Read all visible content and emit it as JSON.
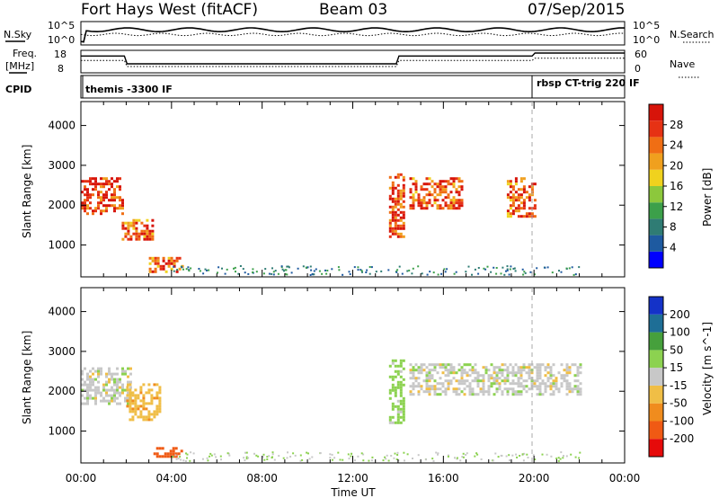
{
  "header": {
    "station": "Fort Hays West (fitACF)",
    "beam": "Beam 03",
    "date": "07/Sep/2015"
  },
  "top_panels": {
    "nsky_label": "N.Sky",
    "nsky_ticks": [
      "10^5",
      "10^0"
    ],
    "nsearch_label": "N.Search",
    "nsearch_ticks": [
      "10^5",
      "10^0"
    ],
    "freq_label_1": "Freq.",
    "freq_label_2": "[MHz]",
    "freq_ticks": [
      "18",
      "8"
    ],
    "nave_label": "Nave",
    "nave_ticks": [
      "60",
      "0"
    ],
    "cpid_label": "CPID",
    "cpid_left": "themis -3300 IF",
    "cpid_right": "rbsp CT-trig 220 IF"
  },
  "chart_data": [
    {
      "type": "heatmap",
      "panel": "power",
      "ylabel": "Slant Range [km]",
      "yticks": [
        "4000",
        "3000",
        "2000",
        "1000"
      ],
      "ylim": [
        200,
        4600
      ],
      "xlim_hours": [
        0,
        24
      ],
      "colorbar_label": "Power [dB]",
      "colorbar_ticks": [
        "28",
        "24",
        "20",
        "16",
        "12",
        "8",
        "4"
      ],
      "colors": [
        "#0000ff",
        "#1e5aa0",
        "#2f7c74",
        "#3ca04a",
        "#8cc83c",
        "#f0d21e",
        "#f0a01e",
        "#f06e14",
        "#e63214",
        "#d7140a"
      ],
      "echo_regions": [
        {
          "t": [
            0.0,
            1.8
          ],
          "r": [
            1800,
            2700
          ],
          "power": 26
        },
        {
          "t": [
            1.8,
            3.2
          ],
          "r": [
            1150,
            1650
          ],
          "power": 24
        },
        {
          "t": [
            3.0,
            4.5
          ],
          "r": [
            350,
            700
          ],
          "power": 22
        },
        {
          "t": [
            13.6,
            14.3
          ],
          "r": [
            1200,
            2800
          ],
          "power": 25
        },
        {
          "t": [
            14.5,
            16.8
          ],
          "r": [
            1900,
            2700
          ],
          "power": 24
        },
        {
          "t": [
            18.8,
            20.0
          ],
          "r": [
            1700,
            2700
          ],
          "power": 24
        }
      ]
    },
    {
      "type": "heatmap",
      "panel": "velocity",
      "ylabel": "Slant Range [km]",
      "yticks": [
        "4000",
        "3000",
        "2000",
        "1000"
      ],
      "ylim": [
        200,
        4600
      ],
      "xlim_hours": [
        0,
        24
      ],
      "xticks": [
        "00:00",
        "04:00",
        "08:00",
        "12:00",
        "16:00",
        "20:00",
        "00:00"
      ],
      "xlabel": "Time UT",
      "colorbar_label": "Velocity [m s^-1]",
      "colorbar_ticks": [
        "200",
        "100",
        "50",
        "15",
        "-15",
        "-50",
        "-100",
        "-200"
      ],
      "colors": [
        "#e60a0a",
        "#f05a14",
        "#f08c1e",
        "#f0be46",
        "#c8c8c8",
        "#8cd250",
        "#46a03c",
        "#1e6e96",
        "#1432c8"
      ],
      "echo_regions": [
        {
          "t": [
            0.0,
            2.2
          ],
          "r": [
            1700,
            2600
          ],
          "velocity": 0
        },
        {
          "t": [
            2.0,
            3.5
          ],
          "r": [
            1300,
            2200
          ],
          "velocity": -40
        },
        {
          "t": [
            3.2,
            4.5
          ],
          "r": [
            350,
            600
          ],
          "velocity": -150
        },
        {
          "t": [
            13.6,
            14.3
          ],
          "r": [
            1200,
            2800
          ],
          "velocity": 30
        },
        {
          "t": [
            14.5,
            22.0
          ],
          "r": [
            1900,
            2700
          ],
          "velocity": 0
        }
      ]
    }
  ]
}
